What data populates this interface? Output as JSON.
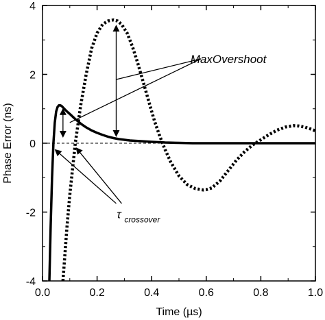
{
  "chart_data": {
    "type": "line",
    "xlabel": "Time (µs)",
    "ylabel": "Phase Error (ns)",
    "xlim": [
      0.0,
      1.0
    ],
    "ylim": [
      -4,
      4
    ],
    "x_ticks": [
      0.0,
      0.2,
      0.4,
      0.6,
      0.8,
      1.0
    ],
    "x_tick_labels": [
      "0.0",
      "0.2",
      "0.4",
      "0.6",
      "0.8",
      "1.0"
    ],
    "y_ticks": [
      -4,
      -2,
      0,
      2,
      4
    ],
    "y_tick_labels": [
      "-4",
      "-2",
      "0",
      "2",
      "4"
    ],
    "grid": false,
    "series": [
      {
        "style": "solid",
        "color": "#000000",
        "x": [
          0.025,
          0.03,
          0.035,
          0.04,
          0.045,
          0.05,
          0.055,
          0.06,
          0.065,
          0.07,
          0.08,
          0.09,
          0.1,
          0.12,
          0.14,
          0.16,
          0.18,
          0.2,
          0.22,
          0.24,
          0.26,
          0.28,
          0.3,
          0.32,
          0.34,
          0.36,
          0.38,
          0.4,
          0.45,
          0.5,
          0.55,
          0.6,
          0.7,
          0.8,
          0.9,
          1.0
        ],
        "y": [
          -4.0,
          -2.4,
          -1.0,
          0.0,
          0.6,
          0.92,
          1.05,
          1.1,
          1.1,
          1.08,
          1.0,
          0.92,
          0.85,
          0.7,
          0.57,
          0.46,
          0.37,
          0.3,
          0.24,
          0.19,
          0.15,
          0.12,
          0.1,
          0.08,
          0.07,
          0.06,
          0.05,
          0.04,
          0.02,
          0.01,
          0.0,
          0.0,
          0.0,
          0.0,
          0.0,
          0.0
        ]
      },
      {
        "style": "dotted",
        "color": "#000000",
        "x": [
          0.075,
          0.09,
          0.1,
          0.12,
          0.14,
          0.16,
          0.18,
          0.2,
          0.22,
          0.24,
          0.26,
          0.275,
          0.29,
          0.31,
          0.33,
          0.35,
          0.37,
          0.39,
          0.41,
          0.43,
          0.45,
          0.47,
          0.5,
          0.53,
          0.56,
          0.59,
          0.6,
          0.62,
          0.65,
          0.68,
          0.71,
          0.74,
          0.77,
          0.8,
          0.83,
          0.86,
          0.89,
          0.92,
          0.94,
          0.96,
          0.98,
          1.0
        ],
        "y": [
          -4.0,
          -2.4,
          -1.5,
          0.0,
          1.1,
          2.0,
          2.75,
          3.2,
          3.45,
          3.55,
          3.58,
          3.55,
          3.45,
          3.2,
          2.8,
          2.3,
          1.75,
          1.2,
          0.65,
          0.2,
          -0.2,
          -0.55,
          -0.95,
          -1.2,
          -1.32,
          -1.36,
          -1.35,
          -1.3,
          -1.1,
          -0.8,
          -0.5,
          -0.25,
          -0.05,
          0.1,
          0.25,
          0.38,
          0.47,
          0.51,
          0.5,
          0.47,
          0.42,
          0.36
        ]
      },
      {
        "style": "dashed",
        "color": "#000000",
        "x": [
          0.0,
          1.0
        ],
        "y": [
          0.0,
          0.0
        ]
      }
    ],
    "annotations": [
      {
        "text": "MaxOvershoot",
        "x": 0.6,
        "y": 2.45
      },
      {
        "text": "τ",
        "subscript": "crossover",
        "x": 0.385,
        "y": -2.1
      }
    ]
  }
}
